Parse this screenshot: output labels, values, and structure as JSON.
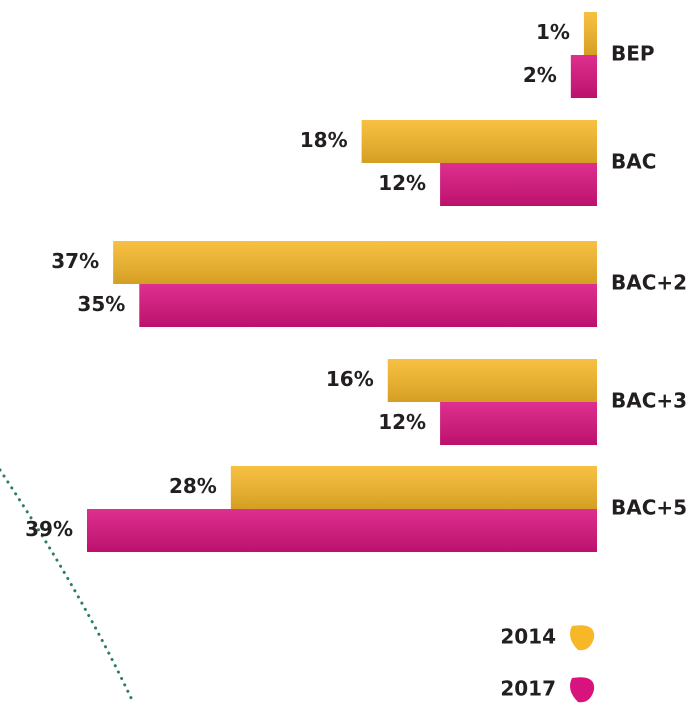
{
  "chart_data": {
    "type": "bar",
    "orientation": "horizontal",
    "categories": [
      "BEP",
      "BAC",
      "BAC+2",
      "BAC+3",
      "BAC+5"
    ],
    "series": [
      {
        "name": "2014",
        "color": "#f6b829",
        "values": [
          1,
          18,
          37,
          16,
          28
        ],
        "value_labels": [
          "1%",
          "18%",
          "37%",
          "16%",
          "28%"
        ]
      },
      {
        "name": "2017",
        "color": "#d9137e",
        "values": [
          2,
          12,
          35,
          12,
          39
        ],
        "value_labels": [
          "2%",
          "12%",
          "35%",
          "12%",
          "39%"
        ]
      }
    ]
  }
}
